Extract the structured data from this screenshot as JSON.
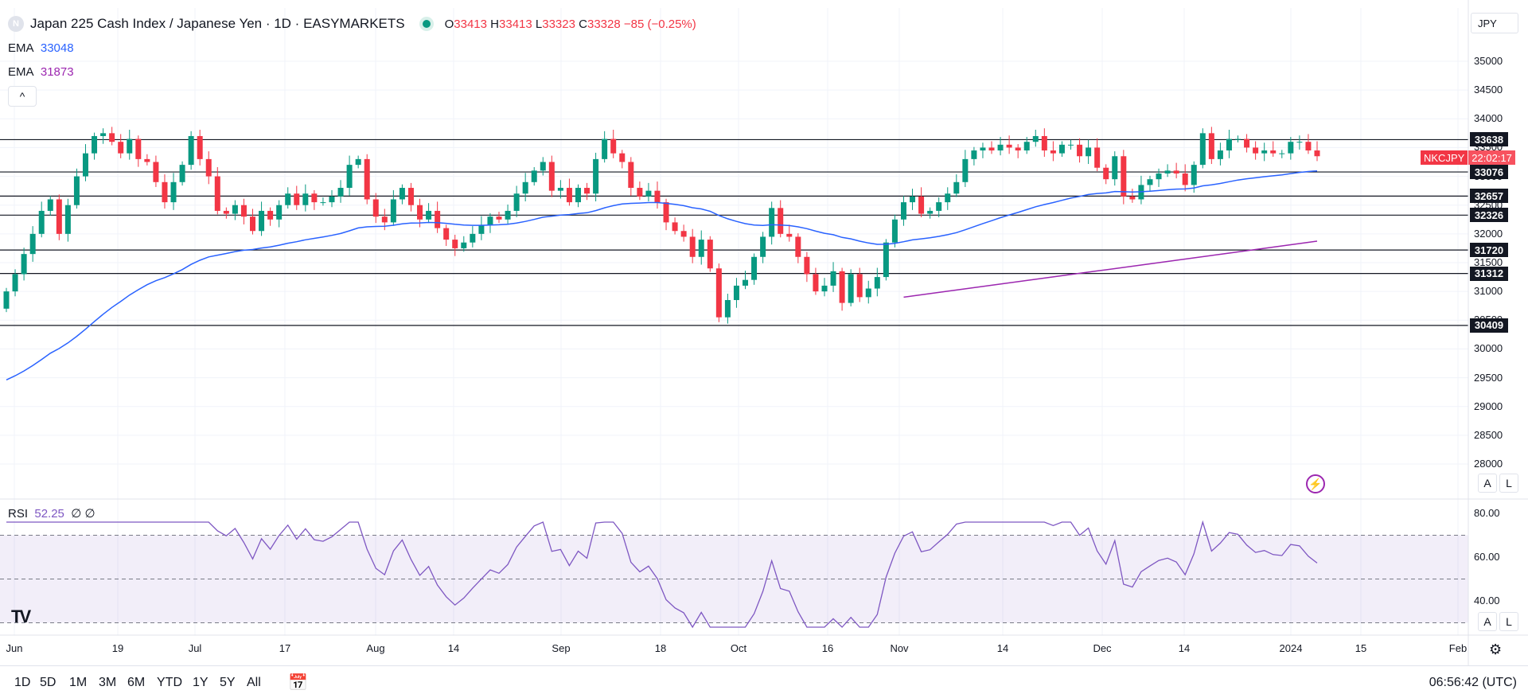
{
  "header": {
    "logo_letter": "N",
    "title": "Japan 225 Cash Index / Japanese Yen · 1D · EASYMARKETS",
    "ohlc": {
      "o_label": "O",
      "o": "33413",
      "h_label": "H",
      "h": "33413",
      "l_label": "L",
      "l": "33323",
      "c_label": "C",
      "c": "33328",
      "change": "−85 (−0.25%)"
    }
  },
  "indicators": {
    "ema1_label": "EMA",
    "ema1_value": "33048",
    "ema1_color": "#2962ff",
    "ema2_label": "EMA",
    "ema2_value": "31873",
    "ema2_color": "#9c27b0",
    "collapse_icon": "^",
    "rsi_label": "RSI",
    "rsi_value": "52.25",
    "rsi_extra": "∅ ∅"
  },
  "currency": "JPY",
  "symbol_badge": {
    "symbol": "NKCJPY",
    "countdown": "22:02:17"
  },
  "price_axis": [
    "35000",
    "34500",
    "34000",
    "33500",
    "33000",
    "32500",
    "32000",
    "31500",
    "31000",
    "30500",
    "30000",
    "29500",
    "29000",
    "28500",
    "28000"
  ],
  "horizontal_levels": [
    "33638",
    "33076",
    "32657",
    "32326",
    "31720",
    "31312",
    "30409"
  ],
  "rsi_axis": [
    "80.00",
    "60.00",
    "40.00"
  ],
  "time_axis": [
    "Jun",
    "19",
    "Jul",
    "17",
    "Aug",
    "14",
    "Sep",
    "18",
    "Oct",
    "16",
    "Nov",
    "14",
    "Dec",
    "14",
    "2024",
    "15",
    "Feb"
  ],
  "pane_buttons": {
    "auto": "A",
    "log": "L"
  },
  "bottom_bar": {
    "ranges": [
      "1D",
      "5D",
      "1M",
      "3M",
      "6M",
      "YTD",
      "1Y",
      "5Y",
      "All"
    ],
    "clock": "06:56:42 (UTC)"
  },
  "icons": {
    "tv_logo": "tradingview-logo-icon",
    "calendar": "calendar-icon",
    "gear": "gear-icon",
    "bolt": "lightning-icon"
  },
  "colors": {
    "up": "#089981",
    "down": "#f23645",
    "ema_fast": "#2962ff",
    "ema_slow": "#9c27b0",
    "rsi": "#7e57c2"
  },
  "chart_data": {
    "type": "candlestick",
    "y_range": [
      27800,
      35300
    ],
    "candle_closes": [
      31000,
      31300,
      31650,
      32000,
      32400,
      32600,
      32000,
      32500,
      33000,
      33400,
      33700,
      33750,
      33600,
      33400,
      33650,
      33300,
      33250,
      32900,
      32550,
      32900,
      33200,
      33700,
      33300,
      33000,
      32400,
      32350,
      32500,
      32300,
      32050,
      32400,
      32250,
      32500,
      32700,
      32500,
      32700,
      32550,
      32550,
      32650,
      32800,
      33200,
      33300,
      32600,
      32300,
      32200,
      32600,
      32800,
      32500,
      32250,
      32400,
      32100,
      31900,
      31750,
      31850,
      32000,
      32150,
      32300,
      32250,
      32400,
      32700,
      32900,
      33100,
      33250,
      32750,
      32800,
      32550,
      32800,
      32700,
      33300,
      33650,
      33400,
      33250,
      32800,
      32650,
      32750,
      32550,
      32200,
      32050,
      31950,
      31600,
      31900,
      31400,
      30550,
      30850,
      31100,
      31200,
      31600,
      31950,
      32450,
      32000,
      31950,
      31600,
      31300,
      31000,
      31100,
      31350,
      30800,
      31300,
      30900,
      31050,
      31250,
      31850,
      32250,
      32550,
      32650,
      32350,
      32400,
      32550,
      32700,
      32900,
      33300,
      33450,
      33500,
      33450,
      33550,
      33500,
      33450,
      33600,
      33700,
      33450,
      33400,
      33550,
      33550,
      33350,
      33500,
      33150,
      32950,
      33350,
      32650,
      32600,
      32850,
      32950,
      33050,
      33100,
      33050,
      32850,
      33200,
      33750,
      33300,
      33450,
      33650,
      33650,
      33500,
      33400,
      33450,
      33400,
      33400,
      33600,
      33600,
      33450,
      33350
    ],
    "ema_fast_series": [
      29500,
      33048
    ],
    "ema_slow_series": [
      30900,
      31873
    ],
    "rsi_series": [
      52.25
    ],
    "rsi_levels": [
      70,
      50,
      30
    ]
  }
}
